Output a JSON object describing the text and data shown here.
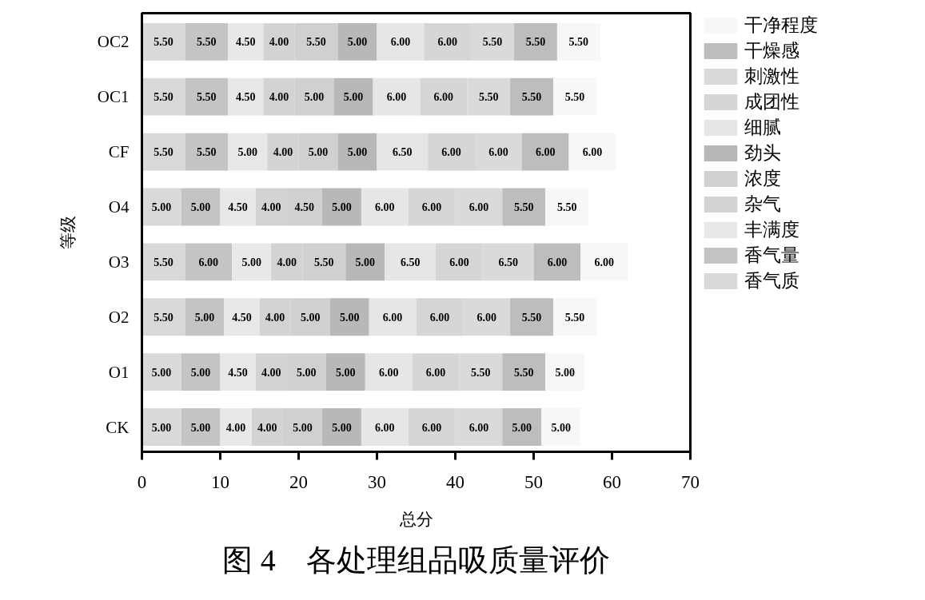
{
  "chart_data": {
    "type": "bar",
    "orientation": "horizontal",
    "stacked": true,
    "title": "图 4　各处理组品吸质量评价",
    "xlabel": "总分",
    "ylabel": "等级",
    "categories": [
      "OC2",
      "OC1",
      "CF",
      "O4",
      "O3",
      "O2",
      "O1",
      "CK"
    ],
    "xlim": [
      0,
      70
    ],
    "xticks": [
      0,
      10,
      20,
      30,
      40,
      50,
      60,
      70
    ],
    "grid": false,
    "legend": "right",
    "series": [
      {
        "name": "香气质",
        "color": "#d9d9d9",
        "values": [
          5.5,
          5.5,
          5.5,
          5.0,
          5.5,
          5.5,
          5.0,
          5.0
        ],
        "value_labels": [
          "5.50",
          "5.50",
          "5.50",
          "5.00",
          "5.50",
          "5.50",
          "5.00",
          "5.00"
        ]
      },
      {
        "name": "香气量",
        "color": "#c4c4c4",
        "values": [
          5.5,
          5.5,
          5.5,
          5.0,
          6.0,
          5.0,
          5.0,
          5.0
        ],
        "value_labels": [
          "5.50",
          "5.50",
          "5.50",
          "5.00",
          "6.00",
          "5.00",
          "5.00",
          "5.00"
        ]
      },
      {
        "name": "丰满度",
        "color": "#e8e8e8",
        "values": [
          4.5,
          4.5,
          5.0,
          4.5,
          5.0,
          4.5,
          4.5,
          4.0
        ],
        "value_labels": [
          "4.50",
          "4.50",
          "5.00",
          "4.50",
          "5.00",
          "4.50",
          "4.50",
          "4.00"
        ]
      },
      {
        "name": "杂气",
        "color": "#d3d3d3",
        "values": [
          4.0,
          4.0,
          4.0,
          4.0,
          4.0,
          4.0,
          4.0,
          4.0
        ],
        "value_labels": [
          "4.00",
          "4.00",
          "4.00",
          "4.00",
          "4.00",
          "4.00",
          "4.00",
          "4.00"
        ]
      },
      {
        "name": "浓度",
        "color": "#d0d0d0",
        "values": [
          5.5,
          5.0,
          5.0,
          4.5,
          5.5,
          5.0,
          5.0,
          5.0
        ],
        "value_labels": [
          "5.50",
          "5.00",
          "5.00",
          "4.50",
          "5.50",
          "5.00",
          "5.00",
          "5.00"
        ]
      },
      {
        "name": "劲头",
        "color": "#b8b8b8",
        "values": [
          5.0,
          5.0,
          5.0,
          5.0,
          5.0,
          5.0,
          5.0,
          5.0
        ],
        "value_labels": [
          "5.00",
          "5.00",
          "5.00",
          "5.00",
          "5.00",
          "5.00",
          "5.00",
          "5.00"
        ]
      },
      {
        "name": "细腻",
        "color": "#e6e6e6",
        "values": [
          6.0,
          6.0,
          6.5,
          6.0,
          6.5,
          6.0,
          6.0,
          6.0
        ],
        "value_labels": [
          "6.00",
          "6.00",
          "6.50",
          "6.00",
          "6.50",
          "6.00",
          "6.00",
          "6.00"
        ]
      },
      {
        "name": "成团性",
        "color": "#d6d6d6",
        "values": [
          6.0,
          6.0,
          6.0,
          6.0,
          6.0,
          6.0,
          6.0,
          6.0
        ],
        "value_labels": [
          "6.00",
          "6.00",
          "6.00",
          "6.00",
          "6.00",
          "6.00",
          "6.00",
          "6.00"
        ]
      },
      {
        "name": "刺激性",
        "color": "#dadada",
        "values": [
          5.5,
          5.5,
          6.0,
          6.0,
          6.5,
          6.0,
          5.5,
          6.0
        ],
        "value_labels": [
          "5.50",
          "5.50",
          "6.00",
          "6.00",
          "6.50",
          "6.00",
          "5.50",
          "6.00"
        ]
      },
      {
        "name": "干燥感",
        "color": "#bdbdbd",
        "values": [
          5.5,
          5.5,
          6.0,
          5.5,
          6.0,
          5.5,
          5.5,
          5.0
        ],
        "value_labels": [
          "5.50",
          "5.50",
          "6.00",
          "5.50",
          "6.00",
          "5.50",
          "5.50",
          "5.00"
        ]
      },
      {
        "name": "干净程度",
        "color": "#f7f7f7",
        "values": [
          5.5,
          5.5,
          6.0,
          5.5,
          6.0,
          5.5,
          5.0,
          5.0
        ],
        "value_labels": [
          "5.50",
          "5.50",
          "6.00",
          "5.50",
          "6.00",
          "5.50",
          "5.00",
          "5.00"
        ]
      }
    ]
  }
}
